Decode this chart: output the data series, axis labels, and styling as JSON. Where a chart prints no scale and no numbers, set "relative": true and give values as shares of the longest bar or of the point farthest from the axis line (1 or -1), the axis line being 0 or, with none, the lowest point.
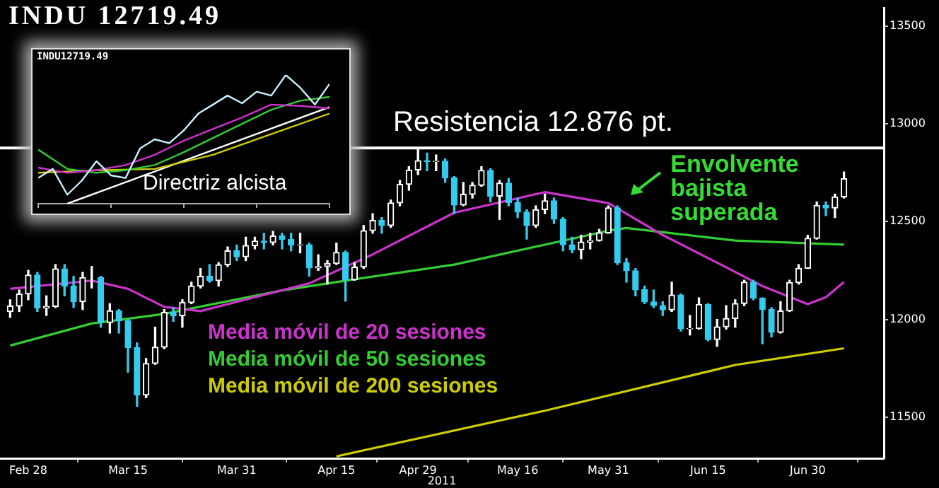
{
  "chart_data": [
    {
      "type": "candlestick",
      "title": "INDU 12719.49",
      "xlabel": "2011",
      "categories": [
        null,
        null,
        "Feb 28",
        null,
        null,
        null,
        null,
        null,
        null,
        null,
        null,
        null,
        null,
        "Mar 15",
        null,
        null,
        null,
        null,
        null,
        null,
        null,
        null,
        null,
        null,
        null,
        "Mar 31",
        null,
        null,
        null,
        null,
        null,
        null,
        null,
        null,
        null,
        null,
        "Apr 15",
        null,
        null,
        null,
        null,
        null,
        null,
        null,
        null,
        "Apr 29",
        null,
        null,
        null,
        null,
        null,
        null,
        null,
        null,
        null,
        null,
        "May 16",
        null,
        null,
        null,
        null,
        null,
        null,
        null,
        null,
        null,
        "May 31",
        null,
        null,
        null,
        null,
        null,
        null,
        null,
        null,
        null,
        null,
        "Jun 15",
        null,
        null,
        null,
        null,
        null,
        null,
        null,
        null,
        null,
        null,
        "Jun 30",
        null,
        null,
        null,
        null
      ],
      "ohlc": [
        [
          12040,
          12100,
          12010,
          12068
        ],
        [
          12068,
          12150,
          12040,
          12130
        ],
        [
          12130,
          12250,
          12100,
          12226
        ],
        [
          12226,
          12240,
          12040,
          12058
        ],
        [
          12058,
          12120,
          12020,
          12066
        ],
        [
          12066,
          12280,
          12060,
          12258
        ],
        [
          12258,
          12280,
          12120,
          12170
        ],
        [
          12170,
          12220,
          12060,
          12090
        ],
        [
          12090,
          12240,
          12050,
          12214
        ],
        [
          12214,
          12270,
          12160,
          12214
        ],
        [
          12214,
          12220,
          11960,
          11984
        ],
        [
          11984,
          12080,
          11930,
          12044
        ],
        [
          12044,
          12050,
          11930,
          11993
        ],
        [
          11993,
          12000,
          11730,
          11855
        ],
        [
          11855,
          11880,
          11555,
          11613
        ],
        [
          11613,
          11800,
          11600,
          11775
        ],
        [
          11775,
          11960,
          11770,
          11858
        ],
        [
          11858,
          12050,
          11850,
          12036
        ],
        [
          12036,
          12060,
          11990,
          12018
        ],
        [
          12018,
          12100,
          11960,
          12086
        ],
        [
          12086,
          12190,
          12080,
          12170
        ],
        [
          12170,
          12260,
          12160,
          12220
        ],
        [
          12220,
          12280,
          12190,
          12198
        ],
        [
          12198,
          12290,
          12170,
          12279
        ],
        [
          12279,
          12370,
          12270,
          12350
        ],
        [
          12350,
          12380,
          12300,
          12320
        ],
        [
          12320,
          12420,
          12300,
          12377
        ],
        [
          12377,
          12420,
          12360,
          12400
        ],
        [
          12400,
          12440,
          12360,
          12393
        ],
        [
          12393,
          12450,
          12380,
          12426
        ],
        [
          12426,
          12440,
          12360,
          12409
        ],
        [
          12409,
          12440,
          12350,
          12380
        ],
        [
          12380,
          12440,
          12340,
          12381
        ],
        [
          12381,
          12390,
          12220,
          12263
        ],
        [
          12263,
          12330,
          12250,
          12270
        ],
        [
          12270,
          12300,
          12180,
          12285
        ],
        [
          12285,
          12390,
          12280,
          12342
        ],
        [
          12342,
          12350,
          12093,
          12202
        ],
        [
          12202,
          12290,
          12200,
          12267
        ],
        [
          12267,
          12480,
          12260,
          12453
        ],
        [
          12453,
          12540,
          12440,
          12506
        ],
        [
          12506,
          12520,
          12440,
          12480
        ],
        [
          12480,
          12610,
          12470,
          12595
        ],
        [
          12595,
          12710,
          12580,
          12690
        ],
        [
          12690,
          12780,
          12660,
          12763
        ],
        [
          12763,
          12876,
          12740,
          12811
        ],
        [
          12811,
          12850,
          12760,
          12807
        ],
        [
          12807,
          12840,
          12760,
          12808
        ],
        [
          12808,
          12820,
          12700,
          12724
        ],
        [
          12724,
          12730,
          12540,
          12584
        ],
        [
          12584,
          12700,
          12580,
          12639
        ],
        [
          12639,
          12700,
          12620,
          12685
        ],
        [
          12685,
          12780,
          12680,
          12761
        ],
        [
          12761,
          12770,
          12600,
          12630
        ],
        [
          12630,
          12710,
          12510,
          12696
        ],
        [
          12696,
          12720,
          12580,
          12596
        ],
        [
          12596,
          12620,
          12520,
          12548
        ],
        [
          12548,
          12560,
          12410,
          12480
        ],
        [
          12480,
          12580,
          12470,
          12561
        ],
        [
          12561,
          12640,
          12540,
          12606
        ],
        [
          12606,
          12620,
          12490,
          12512
        ],
        [
          12512,
          12520,
          12350,
          12381
        ],
        [
          12381,
          12420,
          12340,
          12356
        ],
        [
          12356,
          12430,
          12310,
          12395
        ],
        [
          12395,
          12440,
          12360,
          12403
        ],
        [
          12403,
          12460,
          12400,
          12442
        ],
        [
          12442,
          12580,
          12440,
          12570
        ],
        [
          12570,
          12580,
          12280,
          12290
        ],
        [
          12290,
          12310,
          12190,
          12248
        ],
        [
          12248,
          12260,
          12120,
          12151
        ],
        [
          12151,
          12170,
          12080,
          12089
        ],
        [
          12089,
          12150,
          12060,
          12070
        ],
        [
          12070,
          12090,
          12020,
          12049
        ],
        [
          12049,
          12190,
          12040,
          12124
        ],
        [
          12124,
          12130,
          11940,
          11952
        ],
        [
          11952,
          12020,
          11920,
          11953
        ],
        [
          11953,
          12110,
          11950,
          12076
        ],
        [
          12076,
          12080,
          11890,
          11897
        ],
        [
          11897,
          12000,
          11862,
          11962
        ],
        [
          11962,
          12070,
          11950,
          12004
        ],
        [
          12004,
          12100,
          11960,
          12081
        ],
        [
          12081,
          12200,
          12070,
          12190
        ],
        [
          12190,
          12200,
          12100,
          12109
        ],
        [
          12109,
          12110,
          11875,
          12050
        ],
        [
          12050,
          12060,
          11910,
          11934
        ],
        [
          11934,
          12090,
          11930,
          12043
        ],
        [
          12043,
          12200,
          12040,
          12188
        ],
        [
          12188,
          12280,
          12180,
          12261
        ],
        [
          12261,
          12430,
          12260,
          12414
        ],
        [
          12414,
          12600,
          12410,
          12582
        ],
        [
          12582,
          12600,
          12530,
          12569
        ],
        [
          12569,
          12640,
          12520,
          12626
        ],
        [
          12626,
          12753,
          12620,
          12719
        ]
      ],
      "series": [
        {
          "name": "Media móvil de 20 sesiones",
          "type": "line",
          "color": "#cc33cc",
          "values": [
            12156,
            null,
            null,
            null,
            null,
            null,
            null,
            null,
            null,
            12198,
            null,
            null,
            null,
            12156,
            null,
            null,
            null,
            12064,
            null,
            null,
            null,
            12042,
            null,
            null,
            null,
            null,
            null,
            12113,
            null,
            null,
            null,
            null,
            null,
            12184,
            null,
            null,
            null,
            null,
            null,
            null,
            12332,
            null,
            null,
            null,
            null,
            null,
            null,
            null,
            null,
            12545,
            null,
            null,
            null,
            null,
            null,
            null,
            null,
            null,
            null,
            12650,
            null,
            null,
            null,
            null,
            null,
            null,
            12594,
            null,
            null,
            null,
            null,
            null,
            12431,
            null,
            null,
            null,
            null,
            null,
            12290,
            null,
            null,
            null,
            null,
            12170,
            null,
            null,
            null,
            null,
            12078,
            null,
            12113,
            null,
            12191
          ]
        },
        {
          "name": "Media móvil de 50 sesiones",
          "type": "line",
          "color": "#33cc33",
          "values": [
            11866,
            null,
            null,
            null,
            null,
            null,
            null,
            null,
            null,
            11979,
            null,
            null,
            null,
            null,
            null,
            null,
            null,
            12028,
            null,
            null,
            null,
            null,
            null,
            null,
            null,
            null,
            null,
            null,
            null,
            null,
            12148,
            null,
            null,
            null,
            null,
            null,
            null,
            null,
            12205,
            null,
            null,
            null,
            null,
            null,
            null,
            null,
            null,
            null,
            null,
            12280,
            null,
            null,
            null,
            null,
            null,
            null,
            null,
            null,
            null,
            null,
            null,
            null,
            null,
            null,
            null,
            null,
            12453,
            null,
            12467,
            null,
            null,
            null,
            null,
            null,
            null,
            null,
            null,
            null,
            null,
            null,
            12403,
            null,
            null,
            null,
            null,
            null,
            null,
            null,
            null,
            null,
            null,
            null,
            12382
          ]
        },
        {
          "name": "Media móvil de 200 sesiones",
          "type": "line",
          "color": "#cccc00",
          "values": [
            null,
            null,
            null,
            null,
            null,
            null,
            null,
            null,
            null,
            null,
            null,
            null,
            null,
            null,
            null,
            null,
            null,
            null,
            null,
            null,
            null,
            null,
            null,
            null,
            null,
            null,
            null,
            null,
            null,
            null,
            null,
            null,
            null,
            null,
            null,
            null,
            11300,
            null,
            null,
            null,
            null,
            null,
            null,
            null,
            null,
            null,
            null,
            null,
            null,
            null,
            null,
            null,
            null,
            null,
            null,
            null,
            null,
            null,
            null,
            11533,
            null,
            null,
            null,
            null,
            null,
            null,
            null,
            null,
            null,
            null,
            null,
            null,
            null,
            null,
            null,
            null,
            null,
            null,
            null,
            null,
            11767,
            null,
            null,
            null,
            null,
            null,
            null,
            null,
            null,
            null,
            null,
            null,
            11852
          ]
        }
      ],
      "ylim": [
        11290,
        13590
      ],
      "yticks": [
        11500,
        12000,
        12500,
        13000,
        13500
      ],
      "ref_lines": [
        {
          "axis": "y",
          "value": 12876,
          "label": "Resistencia 12.876 pt.",
          "color": "#ffffff"
        }
      ],
      "annotations": [
        {
          "text": "Envolvente bajista superada",
          "x": "May 31",
          "y": 12580
        }
      ],
      "legend": "bottom left",
      "grid": false
    },
    {
      "type": "line",
      "title": "INDU12719.49",
      "relative": true,
      "tick_labels": false,
      "categories": [
        null,
        null,
        null,
        null,
        null,
        null,
        null,
        null,
        null,
        null,
        null,
        null,
        null,
        null,
        null,
        null,
        null,
        null,
        null,
        null,
        null
      ],
      "series": [
        {
          "color": "#ccf0ff",
          "values": [
            0.2,
            0.27,
            0.07,
            0.18,
            0.33,
            0.22,
            0.2,
            0.43,
            0.5,
            0.47,
            0.57,
            0.7,
            0.77,
            0.84,
            0.78,
            0.87,
            0.84,
            1.0,
            0.9,
            0.77,
            0.93
          ]
        },
        {
          "color": "#cc33cc",
          "values": [
            0.28,
            null,
            0.24,
            null,
            0.26,
            null,
            0.3,
            null,
            0.38,
            null,
            0.49,
            null,
            0.58,
            null,
            0.67,
            null,
            0.77,
            null,
            0.76,
            null,
            0.74
          ]
        },
        {
          "color": "#33cc33",
          "values": [
            0.42,
            null,
            0.27,
            null,
            0.24,
            null,
            0.26,
            null,
            0.3,
            null,
            0.4,
            null,
            0.51,
            null,
            0.62,
            null,
            0.73,
            null,
            0.8,
            null,
            0.83
          ]
        },
        {
          "color": "#cccc00",
          "values": [
            0.24,
            null,
            null,
            null,
            0.26,
            null,
            null,
            null,
            0.27,
            null,
            null,
            null,
            0.38,
            null,
            null,
            null,
            0.54,
            null,
            null,
            null,
            0.7
          ]
        },
        {
          "color": "#ffffff",
          "values": [
            null,
            null,
            0,
            null,
            null,
            null,
            null,
            null,
            null,
            null,
            null,
            null,
            null,
            null,
            null,
            null,
            null,
            null,
            null,
            null,
            0.75
          ]
        }
      ],
      "annotations": [
        "Directriz alcista"
      ]
    }
  ]
}
